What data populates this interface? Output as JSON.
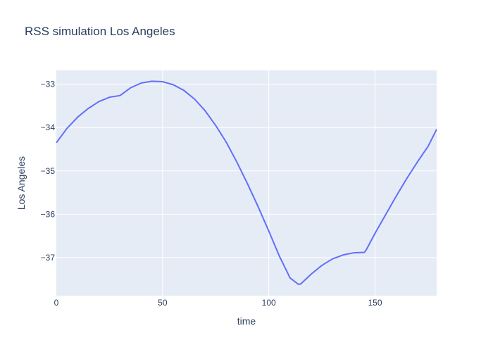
{
  "chart_data": {
    "type": "line",
    "title": "RSS simulation Los Angeles",
    "xlabel": "time",
    "ylabel": "Los Angeles",
    "xlim": [
      0,
      179
    ],
    "ylim": [
      -37.88,
      -32.68
    ],
    "x_ticks": [
      0,
      50,
      100,
      150
    ],
    "y_ticks": [
      -33,
      -34,
      -35,
      -36,
      -37
    ],
    "x_tick_labels": [
      "0",
      "50",
      "100",
      "150"
    ],
    "y_tick_labels": [
      "−33",
      "−34",
      "−35",
      "−36",
      "−37"
    ],
    "grid": true,
    "legend": "none",
    "colors": {
      "plot_background": "#e5ecf6",
      "grid": "#ffffff",
      "line": "#636efa",
      "text": "#2a3f5f"
    },
    "series": [
      {
        "x": [
          0,
          5,
          10,
          15,
          20,
          25,
          30,
          35,
          40,
          45,
          50,
          55,
          60,
          65,
          70,
          75,
          80,
          85,
          90,
          95,
          100,
          105,
          110,
          114,
          115,
          120,
          125,
          130,
          135,
          140,
          145,
          146,
          150,
          155,
          160,
          165,
          170,
          175,
          179
        ],
        "y": [
          -34.35,
          -34.02,
          -33.76,
          -33.56,
          -33.4,
          -33.3,
          -33.26,
          -33.08,
          -32.97,
          -32.93,
          -32.94,
          -33.01,
          -33.14,
          -33.34,
          -33.61,
          -33.95,
          -34.34,
          -34.8,
          -35.3,
          -35.83,
          -36.39,
          -36.97,
          -37.47,
          -37.62,
          -37.61,
          -37.38,
          -37.18,
          -37.03,
          -36.94,
          -36.89,
          -36.88,
          -36.81,
          -36.44,
          -36.01,
          -35.58,
          -35.17,
          -34.79,
          -34.43,
          -34.04
        ]
      }
    ]
  }
}
